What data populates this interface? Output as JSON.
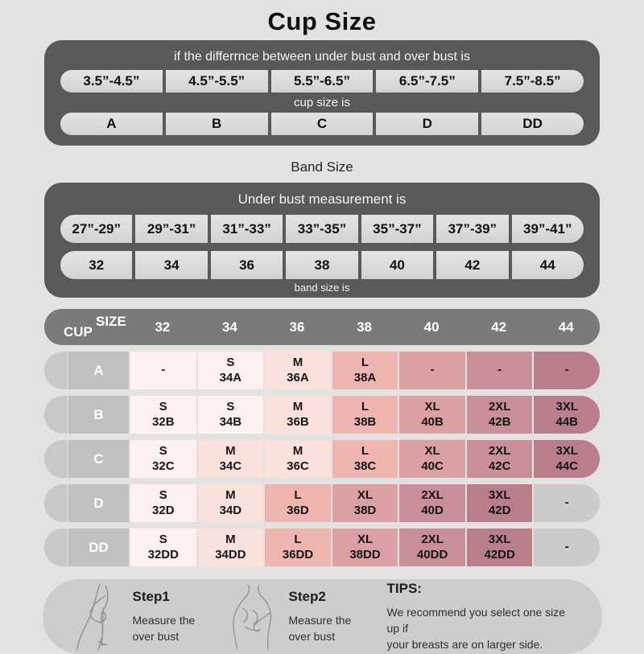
{
  "title": "Cup Size",
  "colors": {
    "page_bg": "#e3e2e0",
    "panel_dark": "#59585a",
    "table_header": "#7b7979",
    "pill_bg": "#d9d9d9",
    "row_label_bg": "#c0c0c0",
    "row_cap_bg": "#c8c8c8",
    "empty_gray_cell": "#cbcbcb",
    "shade_s": "#fdf0ee",
    "shade_m": "#fbe1dc",
    "shade_l": "#eeb5b0",
    "shade_xl": "#dba0a2",
    "shade_2xl": "#c88f98",
    "shade_3xl": "#b87e8a"
  },
  "cup_panel": {
    "caption": "if the differrnce between under bust and over bust is",
    "ranges": [
      "3.5”-4.5”",
      "4.5”-5.5”",
      "5.5”-6.5”",
      "6.5”-7.5”",
      "7.5”-8.5”"
    ],
    "mid_caption": "cup size is",
    "cups": [
      "A",
      "B",
      "C",
      "D",
      "DD"
    ]
  },
  "band_section": {
    "title": "Band Size",
    "caption": "Under bust measurement is",
    "ranges": [
      "27”-29”",
      "29”-31”",
      "31”-33”",
      "33”-35”",
      "35”-37”",
      "37”-39”",
      "39”-41”"
    ],
    "sizes": [
      "32",
      "34",
      "36",
      "38",
      "40",
      "42",
      "44"
    ],
    "bottom_caption": "band size is"
  },
  "size_table": {
    "corner_top": "SIZE",
    "corner_bottom": "CUP",
    "columns": [
      "32",
      "34",
      "36",
      "38",
      "40",
      "42",
      "44"
    ],
    "rows": [
      {
        "cup": "A",
        "cells": [
          {
            "text": "-",
            "bg": "#fdf1ef"
          },
          {
            "text": "S\n34A",
            "bg": "#fdf0ee"
          },
          {
            "text": "M\n36A",
            "bg": "#fbe1dc"
          },
          {
            "text": "L\n38A",
            "bg": "#eeb5b0"
          },
          {
            "text": "-",
            "bg": "#dba0a2"
          },
          {
            "text": "-",
            "bg": "#c88f98"
          },
          {
            "text": "-",
            "bg": "#b87e8a"
          }
        ]
      },
      {
        "cup": "B",
        "cells": [
          {
            "text": "S\n32B",
            "bg": "#fdf0ee"
          },
          {
            "text": "S\n34B",
            "bg": "#fdf0ee"
          },
          {
            "text": "M\n36B",
            "bg": "#fbe1dc"
          },
          {
            "text": "L\n38B",
            "bg": "#eeb5b0"
          },
          {
            "text": "XL\n40B",
            "bg": "#dba0a2"
          },
          {
            "text": "2XL\n42B",
            "bg": "#c88f98"
          },
          {
            "text": "3XL\n44B",
            "bg": "#b87e8a"
          }
        ]
      },
      {
        "cup": "C",
        "cells": [
          {
            "text": "S\n32C",
            "bg": "#fdf0ee"
          },
          {
            "text": "M\n34C",
            "bg": "#fbe1dc"
          },
          {
            "text": "M\n36C",
            "bg": "#fbe1dc"
          },
          {
            "text": "L\n38C",
            "bg": "#eeb5b0"
          },
          {
            "text": "XL\n40C",
            "bg": "#dba0a2"
          },
          {
            "text": "2XL\n42C",
            "bg": "#c88f98"
          },
          {
            "text": "3XL\n44C",
            "bg": "#b87e8a"
          }
        ]
      },
      {
        "cup": "D",
        "cells": [
          {
            "text": "S\n32D",
            "bg": "#fdf0ee"
          },
          {
            "text": "M\n34D",
            "bg": "#fbe1dc"
          },
          {
            "text": "L\n36D",
            "bg": "#eeb5b0"
          },
          {
            "text": "XL\n38D",
            "bg": "#dba0a2"
          },
          {
            "text": "2XL\n40D",
            "bg": "#c88f98"
          },
          {
            "text": "3XL\n42D",
            "bg": "#b87e8a"
          },
          {
            "text": "-",
            "bg": "#cbcbcb"
          }
        ]
      },
      {
        "cup": "DD",
        "cells": [
          {
            "text": "S\n32DD",
            "bg": "#fdf0ee"
          },
          {
            "text": "M\n34DD",
            "bg": "#fbe1dc"
          },
          {
            "text": "L\n36DD",
            "bg": "#eeb5b0"
          },
          {
            "text": "XL\n38DD",
            "bg": "#dba0a2"
          },
          {
            "text": "2XL\n40DD",
            "bg": "#c88f98"
          },
          {
            "text": "3XL\n42DD",
            "bg": "#b87e8a"
          },
          {
            "text": "-",
            "bg": "#cbcbcb"
          }
        ]
      }
    ]
  },
  "footer": {
    "steps": [
      {
        "title": "Step1",
        "text": "Measure the\nover bust"
      },
      {
        "title": "Step2",
        "text": "Measure the\nover bust"
      }
    ],
    "tips_title": "TIPS:",
    "tips_text": "We recommend you select one size up if\nyour breasts are on larger side."
  },
  "chart_data": [
    {
      "type": "table",
      "title": "Cup Size",
      "caption": "if the differrnce between under bust and over bust is",
      "columns": [
        "3.5”-4.5”",
        "4.5”-5.5”",
        "5.5”-6.5”",
        "6.5”-7.5”",
        "7.5”-8.5”"
      ],
      "result_label": "cup size is",
      "values": [
        "A",
        "B",
        "C",
        "D",
        "DD"
      ]
    },
    {
      "type": "table",
      "title": "Band Size",
      "caption": "Under bust measurement is",
      "columns": [
        "27”-29”",
        "29”-31”",
        "31”-33”",
        "33”-35”",
        "35”-37”",
        "37”-39”",
        "39”-41”"
      ],
      "result_label": "band size is",
      "values": [
        "32",
        "34",
        "36",
        "38",
        "40",
        "42",
        "44"
      ]
    },
    {
      "type": "table",
      "title": "Size by cup and band (SIZE / CUP)",
      "columns": [
        "CUP",
        "32",
        "34",
        "36",
        "38",
        "40",
        "42",
        "44"
      ],
      "rows": [
        [
          "A",
          "-",
          "S 34A",
          "M 36A",
          "L 38A",
          "-",
          "-",
          "-"
        ],
        [
          "B",
          "S 32B",
          "S 34B",
          "M 36B",
          "L 38B",
          "XL 40B",
          "2XL 42B",
          "3XL 44B"
        ],
        [
          "C",
          "S 32C",
          "M 34C",
          "M 36C",
          "L 38C",
          "XL 40C",
          "2XL 42C",
          "3XL 44C"
        ],
        [
          "D",
          "S 32D",
          "M 34D",
          "L 36D",
          "XL 38D",
          "2XL 40D",
          "3XL 42D",
          "-"
        ],
        [
          "DD",
          "S 32DD",
          "M 34DD",
          "L 36DD",
          "XL 38DD",
          "2XL 40DD",
          "3XL 42DD",
          "-"
        ]
      ]
    }
  ]
}
